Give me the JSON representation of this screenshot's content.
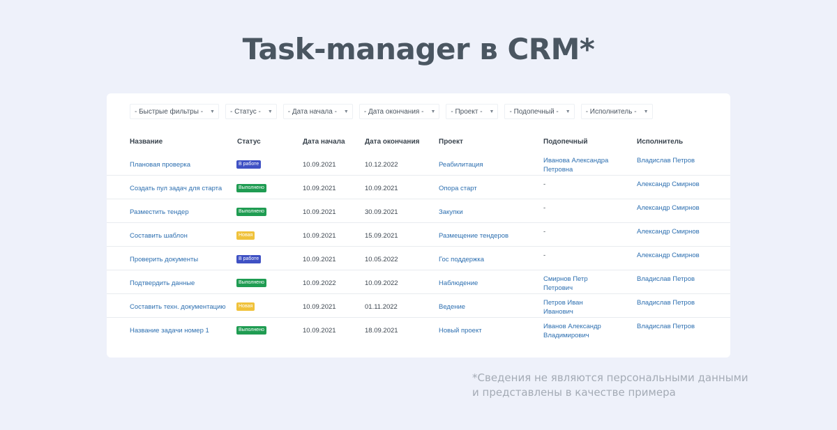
{
  "title": "Task-manager в CRM*",
  "filters": [
    {
      "label": "- Быстрые фильтры -"
    },
    {
      "label": "- Статус -"
    },
    {
      "label": "- Дата начала -"
    },
    {
      "label": "- Дата окончания -"
    },
    {
      "label": "- Проект -"
    },
    {
      "label": "- Подопечный -"
    },
    {
      "label": "- Исполнитель -"
    }
  ],
  "columns": {
    "name": "Название",
    "status": "Статус",
    "start": "Дата начала",
    "end": "Дата окончания",
    "project": "Проект",
    "ward": "Подопечный",
    "assignee": "Исполнитель"
  },
  "rows": [
    {
      "name": "Плановая проверка",
      "status": "В работе",
      "status_kind": "work",
      "start": "10.09.2021",
      "end": "10.12.2022",
      "project": "Реабилитация",
      "ward_line1": "Иванова Александра",
      "ward_line2": "Петровна",
      "assignee": "Владислав Петров"
    },
    {
      "name": "Создать пул задач для старта",
      "status": "Выполнено",
      "status_kind": "done",
      "start": "10.09.2021",
      "end": "10.09.2021",
      "project": "Опора старт",
      "ward_line1": "-",
      "ward_line2": "",
      "assignee": "Александр Смирнов"
    },
    {
      "name": "Разместить тендер",
      "status": "Выполнено",
      "status_kind": "done",
      "start": "10.09.2021",
      "end": "30.09.2021",
      "project": "Закупки",
      "ward_line1": "-",
      "ward_line2": "",
      "assignee": "Александр Смирнов"
    },
    {
      "name": "Составить шаблон",
      "status": "Новая",
      "status_kind": "new",
      "start": "10.09.2021",
      "end": "15.09.2021",
      "project": "Размещение тендеров",
      "ward_line1": "-",
      "ward_line2": "",
      "assignee": "Александр Смирнов"
    },
    {
      "name": "Проверить документы",
      "status": "В работе",
      "status_kind": "work",
      "start": "10.09.2021",
      "end": "10.05.2022",
      "project": "Гос поддержка",
      "ward_line1": "-",
      "ward_line2": "",
      "assignee": "Александр Смирнов"
    },
    {
      "name": "Подтвердить данные",
      "status": "Выполнено",
      "status_kind": "done",
      "start": "10.09.2022",
      "end": "10.09.2022",
      "project": "Наблюдение",
      "ward_line1": "Смирнов Петр",
      "ward_line2": "Петрович",
      "assignee": "Владислав Петров"
    },
    {
      "name": "Составить техн. документацию",
      "status": "Новая",
      "status_kind": "new",
      "start": "10.09.2021",
      "end": "01.11.2022",
      "project": "Ведение",
      "ward_line1": "Петров Иван",
      "ward_line2": "Иванович",
      "assignee": "Владислав Петров"
    },
    {
      "name": "Название задачи номер 1",
      "status": "Выполнено",
      "status_kind": "done",
      "start": "10.09.2021",
      "end": "18.09.2021",
      "project": "Новый проект",
      "ward_line1": "Иванов Александр",
      "ward_line2": "Владимирович",
      "assignee": "Владислав Петров"
    }
  ],
  "colors": {
    "background": "#eef1fa",
    "link": "#2d6fb0",
    "status_work": "#3f51c4",
    "status_done": "#1f9c52",
    "status_new": "#f0c23b"
  },
  "footnote": {
    "line1": "*Сведения не являются персональными данными",
    "line2": "и представлены в качестве примера"
  }
}
